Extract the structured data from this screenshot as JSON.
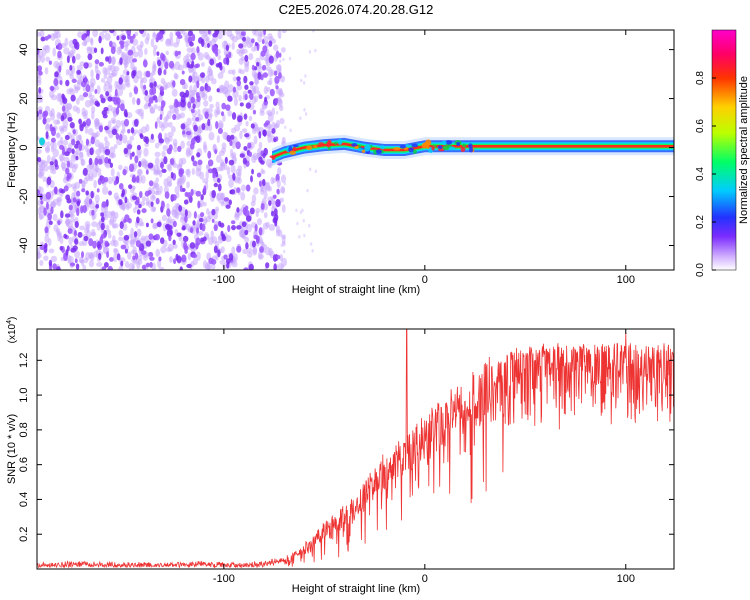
{
  "figure": {
    "title": "C2E5.2026.074.20.28.G12"
  },
  "chart_data": [
    {
      "type": "heatmap",
      "xlabel": "Height of straight line (km)",
      "ylabel": "Frequency (Hz)",
      "xlim": [
        -193,
        124
      ],
      "ylim": [
        -50,
        48
      ],
      "xticks": [
        -100,
        0,
        100
      ],
      "yticks": [
        -40,
        -20,
        0,
        20,
        40
      ],
      "colorbar": {
        "label": "Normalized spectral amplitude",
        "range": [
          0,
          1
        ],
        "ticks": [
          0.0,
          0.2,
          0.4,
          0.6,
          0.8
        ],
        "tick_labels": [
          "0.0",
          "0.2",
          "0.4",
          "0.6",
          "0.8"
        ]
      },
      "regions": [
        {
          "description_label": "noise",
          "x_range": [
            -193,
            -74
          ],
          "y_range": [
            -50,
            48
          ],
          "amplitude": 0.12
        },
        {
          "description_label": "signal",
          "x_range": [
            -76,
            124
          ],
          "frequency": 0.5,
          "amplitude": 0.95
        }
      ],
      "signal_track": [
        {
          "x": -76,
          "y": -4
        },
        {
          "x": -70,
          "y": -2
        },
        {
          "x": -60,
          "y": 0
        },
        {
          "x": -50,
          "y": 1
        },
        {
          "x": -40,
          "y": 1.5
        },
        {
          "x": -30,
          "y": 0
        },
        {
          "x": -20,
          "y": -1
        },
        {
          "x": -10,
          "y": -1
        },
        {
          "x": 0,
          "y": 0.5
        },
        {
          "x": 10,
          "y": 0.5
        },
        {
          "x": 20,
          "y": 0.5
        },
        {
          "x": 124,
          "y": 0.5
        }
      ]
    },
    {
      "type": "line",
      "xlabel": "Height of straight line (km)",
      "ylabel": "SNR (10 * v/v)",
      "y_multiplier_label": "(x10",
      "y_multiplier_exp": "4",
      "y_multiplier_close": ")",
      "xlim": [
        -193,
        124
      ],
      "ylim": [
        0,
        1.38
      ],
      "xticks": [
        -100,
        0,
        100
      ],
      "yticks": [
        0.2,
        0.4,
        0.6,
        0.8,
        1.0,
        1.2
      ],
      "ytick_labels": [
        "0.2",
        "0.4",
        "0.6",
        "0.8",
        "1.0",
        "1.2"
      ],
      "color": "#ee3333",
      "series": [
        {
          "x": [
            -193,
            -170,
            -150,
            -130,
            -110,
            -90,
            -80,
            -70,
            -62,
            -55,
            -48,
            -42,
            -36,
            -30,
            -24,
            -18,
            -12,
            -6,
            0,
            6,
            12,
            18,
            24,
            30,
            40,
            50,
            60,
            70,
            80,
            90,
            100,
            110,
            124
          ],
          "y": [
            0.02,
            0.03,
            0.02,
            0.02,
            0.03,
            0.02,
            0.03,
            0.05,
            0.12,
            0.2,
            0.28,
            0.33,
            0.4,
            0.5,
            0.6,
            0.68,
            0.76,
            0.82,
            0.88,
            0.96,
            1.04,
            1.1,
            1.16,
            1.2,
            1.24,
            1.26,
            1.27,
            1.27,
            1.28,
            1.28,
            1.28,
            1.27,
            1.27
          ]
        }
      ],
      "spikes": [
        {
          "x": -9,
          "y": 1.38
        },
        {
          "x": 100,
          "y": 1.36
        }
      ]
    }
  ]
}
